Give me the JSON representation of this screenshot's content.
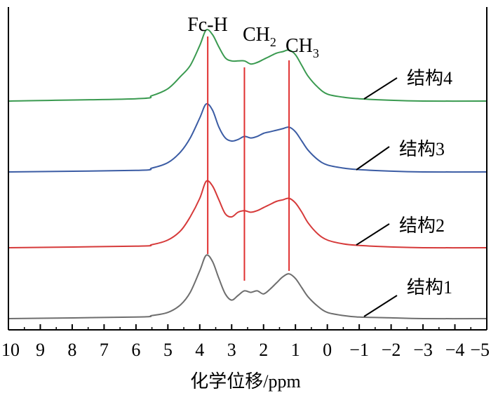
{
  "chart_data": {
    "type": "line",
    "title": "",
    "xlabel": "化学位移/ppm",
    "ylabel": "",
    "x_reversed": true,
    "xlim": [
      10,
      -5
    ],
    "xticks": [
      "10",
      "9",
      "8",
      "7",
      "6",
      "5",
      "4",
      "3",
      "2",
      "1",
      "0",
      "−1",
      "−2",
      "−3",
      "−4",
      "−5"
    ],
    "yticks_shown": false,
    "grid": false,
    "legend": "inline labels with leader lines, right side",
    "peak_lines": [
      {
        "label": "Fc-H",
        "x": 3.75
      },
      {
        "label_base": "CH",
        "label_sub": "2",
        "x": 2.6
      },
      {
        "label_base": "CH",
        "label_sub": "3",
        "x": 1.2
      }
    ],
    "series": [
      {
        "name": "结构1",
        "color": "#6e6e6e",
        "x": [
          10,
          6,
          5.5,
          5,
          4.6,
          4.3,
          4.0,
          3.8,
          3.6,
          3.4,
          3.2,
          3.0,
          2.8,
          2.6,
          2.4,
          2.2,
          2.0,
          1.8,
          1.6,
          1.4,
          1.2,
          1.0,
          0.8,
          0.6,
          0.3,
          0.0,
          -0.5,
          -1.0,
          -2.0,
          -3.0,
          -5.0
        ],
        "y": [
          0.0,
          0.02,
          0.04,
          0.08,
          0.18,
          0.34,
          0.62,
          0.82,
          0.74,
          0.52,
          0.32,
          0.24,
          0.3,
          0.36,
          0.34,
          0.36,
          0.32,
          0.38,
          0.46,
          0.54,
          0.58,
          0.52,
          0.4,
          0.28,
          0.16,
          0.08,
          0.04,
          0.02,
          0.01,
          0.0,
          0.0
        ]
      },
      {
        "name": "结构2",
        "color": "#d63a3a",
        "x": [
          10,
          6,
          5.5,
          5,
          4.6,
          4.3,
          4.0,
          3.8,
          3.6,
          3.4,
          3.2,
          3.0,
          2.8,
          2.6,
          2.4,
          2.2,
          2.0,
          1.8,
          1.6,
          1.4,
          1.2,
          1.0,
          0.8,
          0.6,
          0.3,
          0.0,
          -0.5,
          -1.0,
          -2.0,
          -3.0,
          -5.0
        ],
        "y": [
          0.0,
          0.02,
          0.04,
          0.1,
          0.22,
          0.4,
          0.64,
          0.86,
          0.8,
          0.62,
          0.44,
          0.4,
          0.46,
          0.48,
          0.46,
          0.48,
          0.52,
          0.56,
          0.6,
          0.62,
          0.64,
          0.58,
          0.46,
          0.32,
          0.18,
          0.1,
          0.05,
          0.03,
          0.01,
          0.0,
          0.0
        ]
      },
      {
        "name": "结构3",
        "color": "#3b5ca4",
        "x": [
          10,
          6,
          5.5,
          5,
          4.6,
          4.3,
          4.0,
          3.8,
          3.6,
          3.4,
          3.2,
          3.0,
          2.8,
          2.6,
          2.4,
          2.2,
          2.0,
          1.8,
          1.6,
          1.4,
          1.2,
          1.0,
          0.8,
          0.6,
          0.3,
          0.0,
          -0.5,
          -1.0,
          -2.0,
          -3.0,
          -5.0
        ],
        "y": [
          0.0,
          0.02,
          0.05,
          0.12,
          0.26,
          0.44,
          0.7,
          0.88,
          0.8,
          0.58,
          0.44,
          0.4,
          0.42,
          0.46,
          0.44,
          0.46,
          0.5,
          0.52,
          0.54,
          0.56,
          0.58,
          0.52,
          0.4,
          0.28,
          0.16,
          0.09,
          0.05,
          0.03,
          0.01,
          0.0,
          0.0
        ]
      },
      {
        "name": "结构4",
        "color": "#3a9a50",
        "x": [
          10,
          6,
          5.5,
          5,
          4.6,
          4.3,
          4.0,
          3.8,
          3.6,
          3.4,
          3.2,
          3.0,
          2.8,
          2.6,
          2.4,
          2.2,
          2.0,
          1.8,
          1.6,
          1.4,
          1.2,
          1.0,
          0.8,
          0.6,
          0.3,
          0.0,
          -0.5,
          -1.0,
          -2.0,
          -3.0,
          -5.0
        ],
        "y": [
          0.0,
          0.03,
          0.07,
          0.16,
          0.32,
          0.46,
          0.72,
          0.92,
          0.86,
          0.7,
          0.56,
          0.52,
          0.52,
          0.52,
          0.48,
          0.5,
          0.54,
          0.58,
          0.62,
          0.64,
          0.66,
          0.6,
          0.46,
          0.32,
          0.18,
          0.09,
          0.05,
          0.03,
          0.01,
          0.0,
          0.0
        ]
      }
    ]
  },
  "colors": {
    "axis": "#000000",
    "peak_line": "#e03030",
    "leader": "#000000"
  }
}
